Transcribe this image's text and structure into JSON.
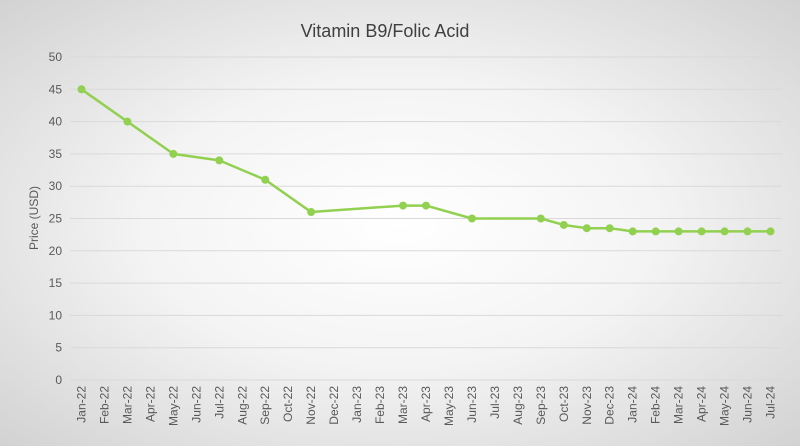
{
  "chart_data": {
    "type": "line",
    "title": "Vitamin B9/Folic Acid",
    "xlabel": "",
    "ylabel": "Price (USD)",
    "ylim": [
      0,
      50
    ],
    "yticks": [
      "0",
      "5",
      "10",
      "15",
      "20",
      "25",
      "30",
      "35",
      "40",
      "45",
      "50"
    ],
    "grid": true,
    "categories": [
      "Jan-22",
      "Feb-22",
      "Mar-22",
      "Apr-22",
      "May-22",
      "Jun-22",
      "Jul-22",
      "Aug-22",
      "Sep-22",
      "Oct-22",
      "Nov-22",
      "Dec-22",
      "Jan-23",
      "Feb-23",
      "Mar-23",
      "Apr-23",
      "May-23",
      "Jun-23",
      "Jul-23",
      "Aug-23",
      "Sep-23",
      "Oct-23",
      "Nov-23",
      "Dec-23",
      "Jan-24",
      "Feb-24",
      "Mar-24",
      "Apr-24",
      "May-24",
      "Jun-24",
      "Jul-24"
    ],
    "series": [
      {
        "color": "#92d050",
        "points": [
          {
            "x": "Jan-22",
            "y": 45
          },
          {
            "x": "Mar-22",
            "y": 40
          },
          {
            "x": "May-22",
            "y": 35
          },
          {
            "x": "Jul-22",
            "y": 34
          },
          {
            "x": "Sep-22",
            "y": 31
          },
          {
            "x": "Nov-22",
            "y": 26
          },
          {
            "x": "Mar-23",
            "y": 27
          },
          {
            "x": "Apr-23",
            "y": 27
          },
          {
            "x": "Jun-23",
            "y": 25
          },
          {
            "x": "Sep-23",
            "y": 25
          },
          {
            "x": "Oct-23",
            "y": 24
          },
          {
            "x": "Nov-23",
            "y": 23.5
          },
          {
            "x": "Dec-23",
            "y": 23.5
          },
          {
            "x": "Jan-24",
            "y": 23
          },
          {
            "x": "Feb-24",
            "y": 23
          },
          {
            "x": "Mar-24",
            "y": 23
          },
          {
            "x": "Apr-24",
            "y": 23
          },
          {
            "x": "May-24",
            "y": 23
          },
          {
            "x": "Jun-24",
            "y": 23
          },
          {
            "x": "Jul-24",
            "y": 23
          }
        ]
      }
    ]
  }
}
